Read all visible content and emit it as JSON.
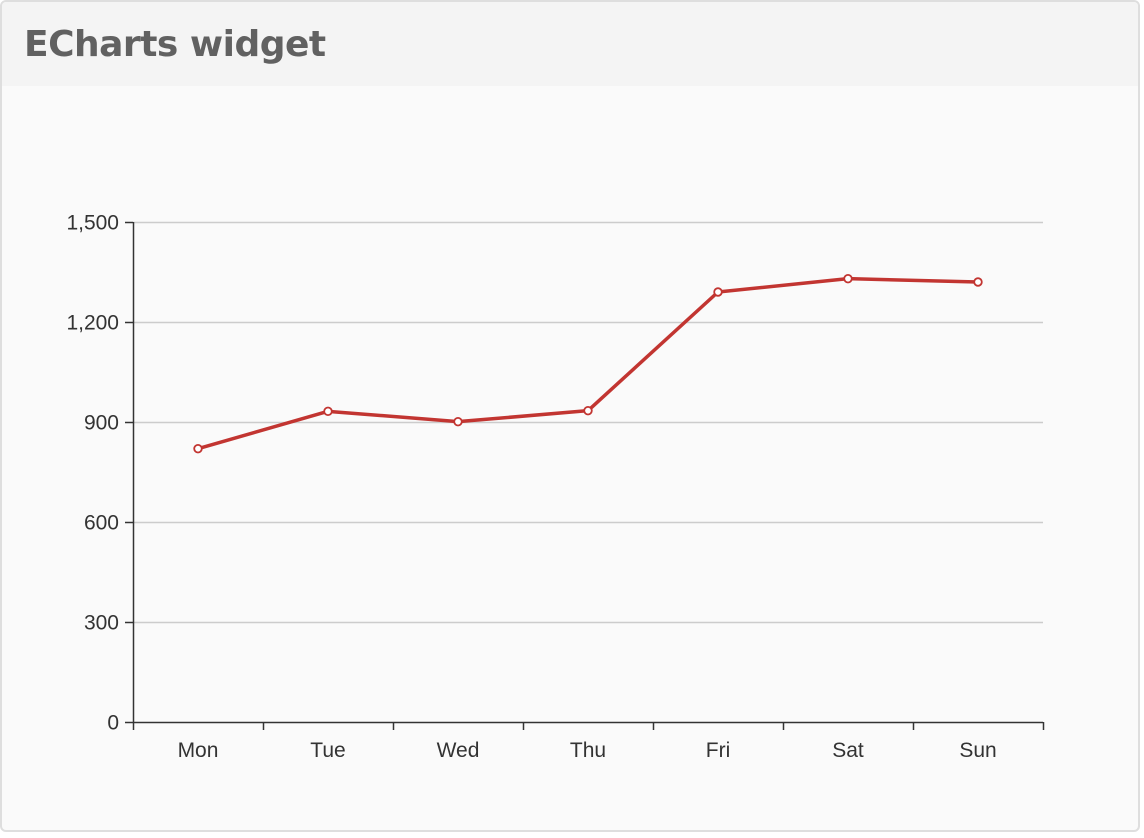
{
  "widget": {
    "title": "ECharts widget"
  },
  "colors": {
    "line": "#c23531",
    "grid": "#cccccc",
    "axis": "#333333"
  },
  "chart_data": {
    "type": "line",
    "categories": [
      "Mon",
      "Tue",
      "Wed",
      "Thu",
      "Fri",
      "Sat",
      "Sun"
    ],
    "series": [
      {
        "values": [
          820,
          932,
          901,
          934,
          1290,
          1330,
          1320
        ]
      }
    ],
    "ylim": [
      0,
      1500
    ],
    "yticks": [
      "0",
      "300",
      "600",
      "900",
      "1,200",
      "1,500"
    ],
    "ytick_values": [
      0,
      300,
      600,
      900,
      1200,
      1500
    ],
    "grid": true,
    "legend": "none"
  }
}
